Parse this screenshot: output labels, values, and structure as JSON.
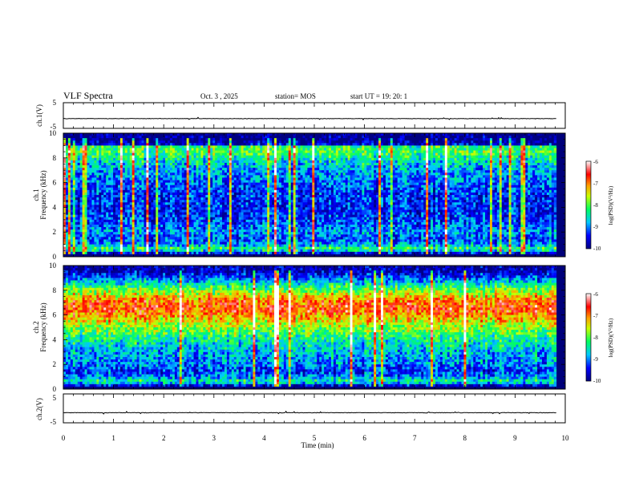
{
  "header": {
    "title": "VLF Spectra",
    "date": "Oct. 3 , 2025",
    "station": "station= MOS",
    "start_time": "start UT =  19: 20: 1"
  },
  "chart_data": [
    {
      "type": "line",
      "panel": "ch1-waveform",
      "ylabel": "ch.1(V)",
      "ylim": [
        -5,
        5
      ],
      "yticks": [
        "5",
        "-5"
      ],
      "level": -1.2,
      "xlim": [
        0,
        10
      ]
    },
    {
      "type": "heatmap",
      "panel": "ch1-spectrogram",
      "ylabel_top": "ch.1",
      "ylabel": "Frequency (kHz)",
      "ylim": [
        0,
        10
      ],
      "yticks": [
        "0",
        "2",
        "4",
        "6",
        "8",
        "10"
      ],
      "xlim": [
        0,
        9.82
      ],
      "colorbar": {
        "label": "log(PSD)(V²/Hz)",
        "range": [
          -10,
          -6
        ],
        "ticks": [
          "-6",
          "-7",
          "-8",
          "-9",
          "-10"
        ]
      },
      "mean_profile": [
        {
          "f": 0.0,
          "v": -10.0
        },
        {
          "f": 0.2,
          "v": -10.0
        },
        {
          "f": 0.6,
          "v": -8.0
        },
        {
          "f": 1.0,
          "v": -9.0
        },
        {
          "f": 1.5,
          "v": -9.2
        },
        {
          "f": 2.0,
          "v": -8.9
        },
        {
          "f": 3.0,
          "v": -9.3
        },
        {
          "f": 4.0,
          "v": -9.4
        },
        {
          "f": 5.0,
          "v": -9.3
        },
        {
          "f": 6.0,
          "v": -9.1
        },
        {
          "f": 7.0,
          "v": -8.9
        },
        {
          "f": 7.8,
          "v": -8.5
        },
        {
          "f": 8.4,
          "v": -8.1
        },
        {
          "f": 8.9,
          "v": -8.2
        },
        {
          "f": 9.1,
          "v": -9.6
        },
        {
          "f": 9.4,
          "v": -10.0
        },
        {
          "f": 10.0,
          "v": -10.0
        }
      ],
      "burst_rate": 0.1
    },
    {
      "type": "heatmap",
      "panel": "ch2-spectrogram",
      "ylabel_top": "ch.2",
      "ylabel": "Frequency (kHz)",
      "ylim": [
        0,
        10
      ],
      "yticks": [
        "0",
        "2",
        "4",
        "6",
        "8",
        "10"
      ],
      "xlim": [
        0,
        9.82
      ],
      "colorbar": {
        "label": "log(PSD)(V²/Hz)",
        "range": [
          -10,
          -6
        ],
        "ticks": [
          "-6",
          "-7",
          "-8",
          "-9",
          "-10"
        ]
      },
      "mean_profile": [
        {
          "f": 0.0,
          "v": -10.0
        },
        {
          "f": 0.2,
          "v": -10.0
        },
        {
          "f": 0.6,
          "v": -8.3
        },
        {
          "f": 1.0,
          "v": -9.0
        },
        {
          "f": 1.5,
          "v": -9.3
        },
        {
          "f": 2.0,
          "v": -9.0
        },
        {
          "f": 3.0,
          "v": -8.8
        },
        {
          "f": 4.0,
          "v": -8.4
        },
        {
          "f": 5.0,
          "v": -7.8
        },
        {
          "f": 5.8,
          "v": -7.2
        },
        {
          "f": 6.6,
          "v": -6.7
        },
        {
          "f": 7.2,
          "v": -7.0
        },
        {
          "f": 8.0,
          "v": -7.9
        },
        {
          "f": 8.8,
          "v": -8.9
        },
        {
          "f": 9.4,
          "v": -9.6
        },
        {
          "f": 10.0,
          "v": -9.9
        }
      ],
      "burst_rate": 0.09
    },
    {
      "type": "line",
      "panel": "ch2-waveform",
      "ylabel": "ch.2(V)",
      "ylim": [
        -5,
        5
      ],
      "yticks": [
        "5",
        "-5"
      ],
      "level": -1.5,
      "xlim": [
        0,
        10
      ]
    }
  ],
  "xaxis": {
    "label": "Time (min)",
    "ticks": [
      "0",
      "1",
      "2",
      "3",
      "4",
      "5",
      "6",
      "7",
      "8",
      "9",
      "10"
    ],
    "xlim": [
      0,
      10
    ]
  },
  "colors": {
    "background": "#ffffff",
    "frame": "#000000"
  }
}
